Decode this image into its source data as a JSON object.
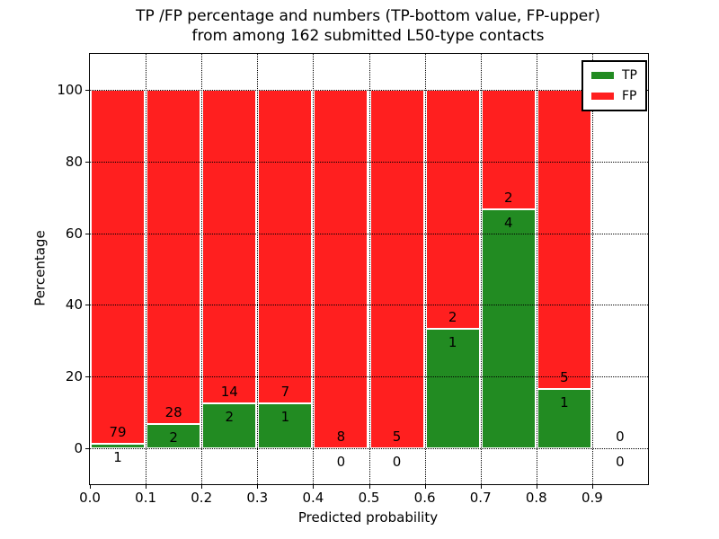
{
  "chart_data": {
    "type": "bar",
    "stacked": true,
    "units": "percent-normalized per bin",
    "title": "TP /FP percentage and numbers (TP-bottom value, FP-upper)\nfrom among 162 submitted L50-type contacts",
    "xlabel": "Predicted probability",
    "ylabel": "Percentage",
    "total_contacts": 162,
    "bin_edges": [
      0.0,
      0.1,
      0.2,
      0.3,
      0.4,
      0.5,
      0.6,
      0.7,
      0.8,
      0.9,
      1.0
    ],
    "series": [
      {
        "name": "TP",
        "color": "#228b22",
        "values": [
          1,
          2,
          2,
          1,
          0,
          0,
          1,
          4,
          1,
          0
        ]
      },
      {
        "name": "FP",
        "color": "#ff1f1f",
        "values": [
          79,
          28,
          14,
          7,
          8,
          5,
          2,
          2,
          5,
          0
        ]
      }
    ],
    "tp_percent_of_bin": [
      1.25,
      6.67,
      12.5,
      12.5,
      0.0,
      0.0,
      33.33,
      66.67,
      16.67,
      null
    ],
    "xlim": [
      0.0,
      1.0
    ],
    "ylim": [
      -10,
      110
    ],
    "xticks": [
      "0.0",
      "0.1",
      "0.2",
      "0.3",
      "0.4",
      "0.5",
      "0.6",
      "0.7",
      "0.8",
      "0.9"
    ],
    "yticks": [
      "0",
      "20",
      "40",
      "60",
      "80",
      "100"
    ],
    "grid": true,
    "legend": {
      "position": "upper right",
      "entries": [
        {
          "label": "TP",
          "color": "#228b22"
        },
        {
          "label": "FP",
          "color": "#ff1f1f"
        }
      ]
    }
  }
}
